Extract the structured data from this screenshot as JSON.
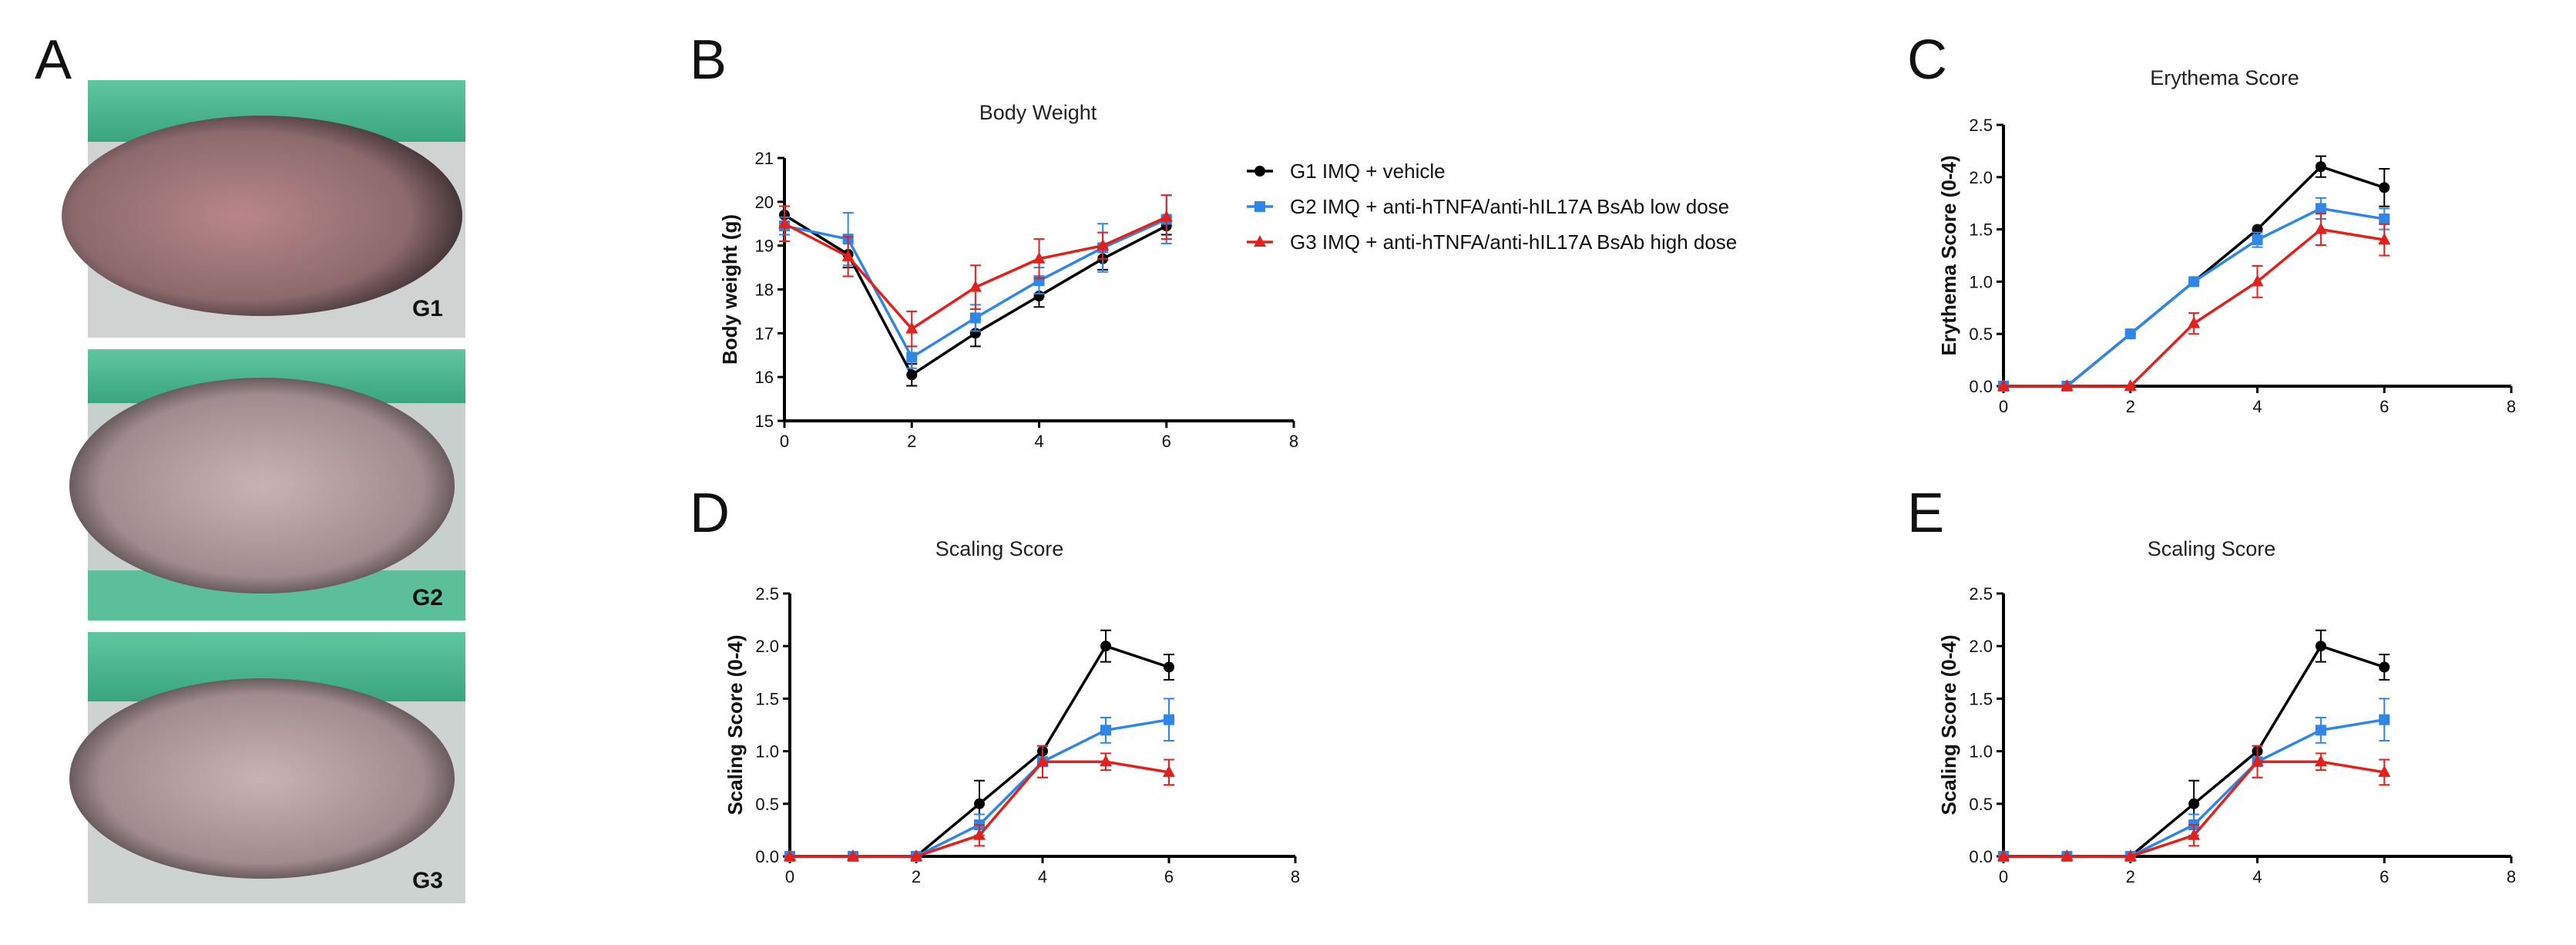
{
  "panels": [
    "A",
    "B",
    "C",
    "D",
    "E"
  ],
  "photos": [
    {
      "label": "G1"
    },
    {
      "label": "G2"
    },
    {
      "label": "G3"
    }
  ],
  "chart_data": [
    {
      "type": "line",
      "title": "Body Weight",
      "y_label": "Body weight (g)",
      "legend": "right",
      "x": [
        0,
        1,
        2,
        3,
        4,
        5,
        6
      ],
      "xlim": [
        0,
        8
      ],
      "xticks": [
        0,
        2,
        4,
        6,
        8
      ],
      "ylim": [
        15,
        21
      ],
      "yticks": [
        15,
        16,
        17,
        18,
        19,
        20,
        21
      ],
      "series": [
        {
          "name": "G1 IMQ + vehicle",
          "color": "#000000",
          "marker": "circle",
          "values": [
            19.7,
            18.8,
            16.05,
            17.0,
            17.85,
            18.7,
            19.45
          ],
          "errors": [
            0.2,
            0.3,
            0.25,
            0.3,
            0.25,
            0.25,
            0.2
          ]
        },
        {
          "name": "G2 IMQ + anti-hTNFA/anti-hIL17A BsAb low dose",
          "color": "#2f86e6",
          "marker": "square",
          "values": [
            19.45,
            19.15,
            16.45,
            17.35,
            18.2,
            18.95,
            19.6
          ],
          "errors": [
            0.2,
            0.6,
            0.25,
            0.3,
            0.3,
            0.55,
            0.55
          ]
        },
        {
          "name": "G3 IMQ + anti-hTNFA/anti-hIL17A BsAb high dose",
          "color": "#e3211c",
          "marker": "triangle",
          "values": [
            19.5,
            18.75,
            17.1,
            18.05,
            18.7,
            19.0,
            19.65
          ],
          "errors": [
            0.4,
            0.45,
            0.4,
            0.5,
            0.45,
            0.3,
            0.5
          ]
        }
      ]
    },
    {
      "type": "line",
      "title": "Erythema Score",
      "y_label": "Erythema Score (0-4)",
      "x": [
        0,
        1,
        2,
        3,
        4,
        5,
        6
      ],
      "xlim": [
        0,
        8
      ],
      "xticks": [
        0,
        2,
        4,
        6,
        8
      ],
      "ylim": [
        0,
        2.5
      ],
      "yticks": [
        {
          "value": 0,
          "label": "0.0"
        },
        0.5,
        {
          "value": 1,
          "label": "1.0"
        },
        1.5,
        {
          "value": 2,
          "label": "2.0"
        },
        2.5
      ],
      "series": [
        {
          "color": "#000000",
          "marker": "circle",
          "values": [
            0,
            0,
            0.5,
            1.0,
            1.5,
            2.1,
            1.9
          ],
          "errors": [
            0,
            0,
            0,
            0,
            0,
            0.1,
            0.18
          ]
        },
        {
          "color": "#2f86e6",
          "marker": "square",
          "values": [
            0,
            0,
            0.5,
            1.0,
            1.4,
            1.7,
            1.6
          ],
          "errors": [
            0,
            0,
            0,
            0,
            0.07,
            0.1,
            0.1
          ]
        },
        {
          "color": "#e3211c",
          "marker": "triangle",
          "values": [
            0,
            0,
            0,
            0.6,
            1.0,
            1.5,
            1.4
          ],
          "errors": [
            0,
            0,
            0,
            0.1,
            0.15,
            0.15,
            0.15
          ]
        }
      ]
    },
    {
      "type": "line",
      "title": "Scaling Score",
      "y_label": "Scaling Score (0-4)",
      "x": [
        0,
        1,
        2,
        3,
        4,
        5,
        6
      ],
      "xlim": [
        0,
        8
      ],
      "xticks": [
        0,
        2,
        4,
        6,
        8
      ],
      "ylim": [
        0,
        2.5
      ],
      "yticks": [
        {
          "value": 0,
          "label": "0.0"
        },
        0.5,
        {
          "value": 1,
          "label": "1.0"
        },
        1.5,
        {
          "value": 2,
          "label": "2.0"
        },
        2.5
      ],
      "series": [
        {
          "color": "#000000",
          "marker": "circle",
          "values": [
            0,
            0,
            0,
            0.5,
            1.0,
            2.0,
            1.8
          ],
          "errors": [
            0,
            0,
            0,
            0.22,
            0,
            0.15,
            0.12
          ]
        },
        {
          "color": "#2f86e6",
          "marker": "square",
          "values": [
            0,
            0,
            0,
            0.3,
            0.9,
            1.2,
            1.3
          ],
          "errors": [
            0,
            0,
            0,
            0.1,
            0.15,
            0.12,
            0.2
          ]
        },
        {
          "color": "#e3211c",
          "marker": "triangle",
          "values": [
            0,
            0,
            0,
            0.2,
            0.9,
            0.9,
            0.8
          ],
          "errors": [
            0,
            0,
            0,
            0.1,
            0.15,
            0.08,
            0.12
          ]
        }
      ]
    },
    {
      "type": "line",
      "title": "Scaling Score",
      "y_label": "Scaling Score (0-4)",
      "x": [
        0,
        1,
        2,
        3,
        4,
        5,
        6
      ],
      "xlim": [
        0,
        8
      ],
      "xticks": [
        0,
        2,
        4,
        6,
        8
      ],
      "ylim": [
        0,
        2.5
      ],
      "yticks": [
        {
          "value": 0,
          "label": "0.0"
        },
        0.5,
        {
          "value": 1,
          "label": "1.0"
        },
        1.5,
        {
          "value": 2,
          "label": "2.0"
        },
        2.5
      ],
      "series": [
        {
          "color": "#000000",
          "marker": "circle",
          "values": [
            0,
            0,
            0,
            0.5,
            1.0,
            2.0,
            1.8
          ],
          "errors": [
            0,
            0,
            0,
            0.22,
            0,
            0.15,
            0.12
          ]
        },
        {
          "color": "#2f86e6",
          "marker": "square",
          "values": [
            0,
            0,
            0,
            0.3,
            0.9,
            1.2,
            1.3
          ],
          "errors": [
            0,
            0,
            0,
            0.1,
            0.15,
            0.12,
            0.2
          ]
        },
        {
          "color": "#e3211c",
          "marker": "triangle",
          "values": [
            0,
            0,
            0,
            0.2,
            0.9,
            0.9,
            0.8
          ],
          "errors": [
            0,
            0,
            0,
            0.1,
            0.15,
            0.08,
            0.12
          ]
        }
      ]
    }
  ]
}
